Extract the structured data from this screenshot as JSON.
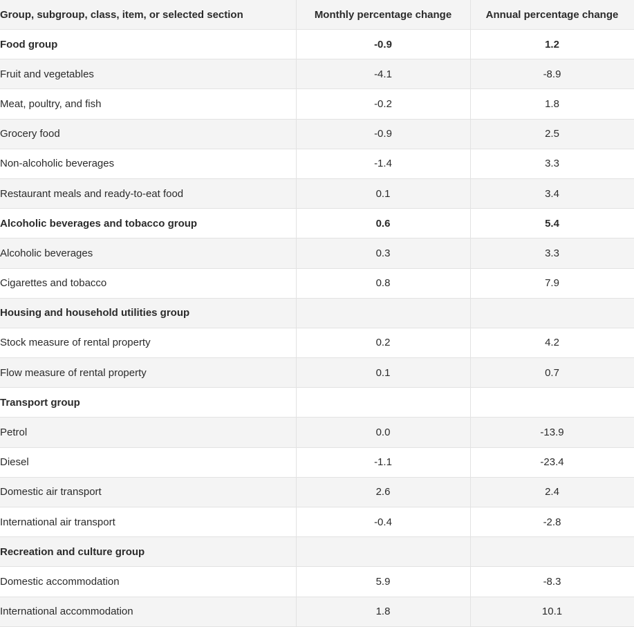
{
  "table": {
    "columns": [
      "Group, subgroup, class, item, or selected section",
      "Monthly percentage change",
      "Annual percentage change"
    ],
    "rows": [
      {
        "label": "Food group",
        "monthly": "-0.9",
        "annual": "1.2",
        "is_group": true
      },
      {
        "label": "Fruit and vegetables",
        "monthly": "-4.1",
        "annual": "-8.9",
        "is_group": false
      },
      {
        "label": "Meat, poultry, and fish",
        "monthly": "-0.2",
        "annual": "1.8",
        "is_group": false
      },
      {
        "label": "Grocery food",
        "monthly": "-0.9",
        "annual": "2.5",
        "is_group": false
      },
      {
        "label": "Non-alcoholic beverages",
        "monthly": "-1.4",
        "annual": "3.3",
        "is_group": false
      },
      {
        "label": "Restaurant meals and ready-to-eat food",
        "monthly": "0.1",
        "annual": "3.4",
        "is_group": false
      },
      {
        "label": "Alcoholic beverages and tobacco group",
        "monthly": "0.6",
        "annual": "5.4",
        "is_group": true
      },
      {
        "label": "Alcoholic beverages",
        "monthly": "0.3",
        "annual": "3.3",
        "is_group": false
      },
      {
        "label": "Cigarettes and tobacco",
        "monthly": "0.8",
        "annual": "7.9",
        "is_group": false
      },
      {
        "label": "Housing and household utilities group",
        "monthly": "",
        "annual": "",
        "is_group": true
      },
      {
        "label": "Stock measure of rental property",
        "monthly": "0.2",
        "annual": "4.2",
        "is_group": false
      },
      {
        "label": "Flow measure of rental property",
        "monthly": "0.1",
        "annual": "0.7",
        "is_group": false
      },
      {
        "label": "Transport group",
        "monthly": "",
        "annual": "",
        "is_group": true
      },
      {
        "label": "Petrol",
        "monthly": "0.0",
        "annual": "-13.9",
        "is_group": false
      },
      {
        "label": "Diesel",
        "monthly": "-1.1",
        "annual": "-23.4",
        "is_group": false
      },
      {
        "label": "Domestic air transport",
        "monthly": "2.6",
        "annual": "2.4",
        "is_group": false
      },
      {
        "label": "International air transport",
        "monthly": "-0.4",
        "annual": "-2.8",
        "is_group": false
      },
      {
        "label": "Recreation and culture group",
        "monthly": "",
        "annual": "",
        "is_group": true
      },
      {
        "label": "Domestic accommodation",
        "monthly": "5.9",
        "annual": "-8.3",
        "is_group": false
      },
      {
        "label": "International accommodation",
        "monthly": "1.8",
        "annual": "10.1",
        "is_group": false
      }
    ]
  },
  "colors": {
    "alt_row_background": "#f4f4f4",
    "border": "#e2e2e2",
    "text": "#2b2b2b"
  }
}
